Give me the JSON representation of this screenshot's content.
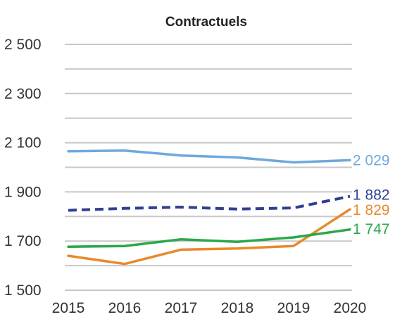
{
  "chart_data": {
    "type": "line",
    "title": "Contractuels",
    "xlabel": "",
    "ylabel": "",
    "x": [
      2015,
      2016,
      2017,
      2018,
      2019,
      2020
    ],
    "x_tick_labels": [
      "2015",
      "2016",
      "2017",
      "2018",
      "2019",
      "2020"
    ],
    "ylim": [
      1500,
      2500
    ],
    "y_ticks": [
      1500,
      1700,
      1900,
      2100,
      2300,
      2500
    ],
    "y_tick_labels": [
      "1 500",
      "1 700",
      "1 900",
      "2 100",
      "2 300",
      "2 500"
    ],
    "gridlines": [
      1500,
      1600,
      1700,
      1800,
      1900,
      2000,
      2100,
      2200,
      2300,
      2400,
      2500
    ],
    "grid": true,
    "legend": "none",
    "series": [
      {
        "values": [
          2065,
          2068,
          2048,
          2040,
          2020,
          2029
        ],
        "color": "#6fa8dc",
        "dashed": false,
        "end_label": "2 029"
      },
      {
        "values": [
          1825,
          1833,
          1838,
          1830,
          1835,
          1882
        ],
        "color": "#2f3f93",
        "dashed": true,
        "end_label": "1 882"
      },
      {
        "values": [
          1640,
          1607,
          1665,
          1670,
          1680,
          1829
        ],
        "color": "#e8892b",
        "dashed": false,
        "end_label": "1 829"
      },
      {
        "values": [
          1677,
          1680,
          1707,
          1697,
          1715,
          1747
        ],
        "color": "#2aa84a",
        "dashed": false,
        "end_label": "1 747"
      }
    ]
  }
}
